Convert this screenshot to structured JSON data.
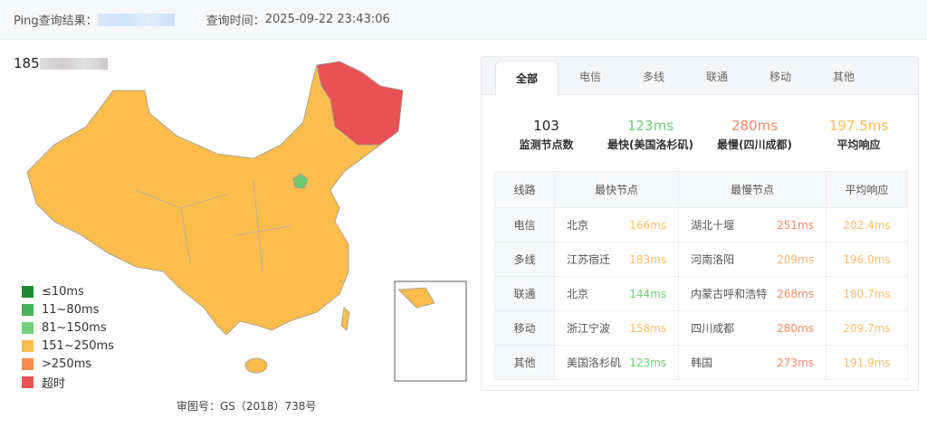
{
  "header": {
    "result_label": "Ping查询结果：",
    "time_label": "查询时间：",
    "time_value": "2025-09-22 23:43:06"
  },
  "target": {
    "ip_prefix": "185"
  },
  "map": {
    "colors": {
      "region_default": "#fcbd4d",
      "region_timeout": "#ea5153",
      "region_fast": "#6cca6d"
    }
  },
  "legend": [
    {
      "label": "≤10ms",
      "color": "#1e8a32"
    },
    {
      "label": "11~80ms",
      "color": "#45b257"
    },
    {
      "label": "81~150ms",
      "color": "#72d47d"
    },
    {
      "label": "151~250ms",
      "color": "#fcbd4d"
    },
    {
      "label": ">250ms",
      "color": "#fb8a4f"
    },
    {
      "label": "超时",
      "color": "#ea5153"
    }
  ],
  "review_number": "审图号：GS（2018）738号",
  "tabs": [
    "全部",
    "电信",
    "多线",
    "联通",
    "移动",
    "其他"
  ],
  "stats": [
    {
      "value": "103",
      "label": "监测节点数",
      "color": "#222222"
    },
    {
      "value": "123ms",
      "label": "最快(美国洛杉矶)",
      "color": "#6ccf78"
    },
    {
      "value": "280ms",
      "label": "最慢(四川成都)",
      "color": "#fb8a63"
    },
    {
      "value": "197.5ms",
      "label": "平均响应",
      "color": "#fcbd4d"
    }
  ],
  "table": {
    "headers": [
      "线路",
      "最快节点",
      "最慢节点",
      "平均响应"
    ],
    "rows": [
      {
        "line": "电信",
        "fast": "北京",
        "fast_ms": "166ms",
        "fast_color": "#fcbd6a",
        "slow": "湖北十堰",
        "slow_ms": "251ms",
        "slow_color": "#fb8a63",
        "avg": "202.4ms"
      },
      {
        "line": "多线",
        "fast": "江苏宿迁",
        "fast_ms": "183ms",
        "fast_color": "#fcbd6a",
        "slow": "河南洛阳",
        "slow_ms": "209ms",
        "slow_color": "#fcb56a",
        "avg": "196.0ms"
      },
      {
        "line": "联通",
        "fast": "北京",
        "fast_ms": "144ms",
        "fast_color": "#6ccf78",
        "slow": "内蒙古呼和浩特",
        "slow_ms": "268ms",
        "slow_color": "#fb8a63",
        "avg": "180.7ms"
      },
      {
        "line": "移动",
        "fast": "浙江宁波",
        "fast_ms": "158ms",
        "fast_color": "#fcbd6a",
        "slow": "四川成都",
        "slow_ms": "280ms",
        "slow_color": "#fb8a63",
        "avg": "209.7ms"
      },
      {
        "line": "其他",
        "fast": "美国洛杉矶",
        "fast_ms": "123ms",
        "fast_color": "#6ccf78",
        "slow": "韩国",
        "slow_ms": "273ms",
        "slow_color": "#fb8a63",
        "avg": "191.9ms"
      }
    ],
    "avg_color": "#fcbd6a"
  }
}
